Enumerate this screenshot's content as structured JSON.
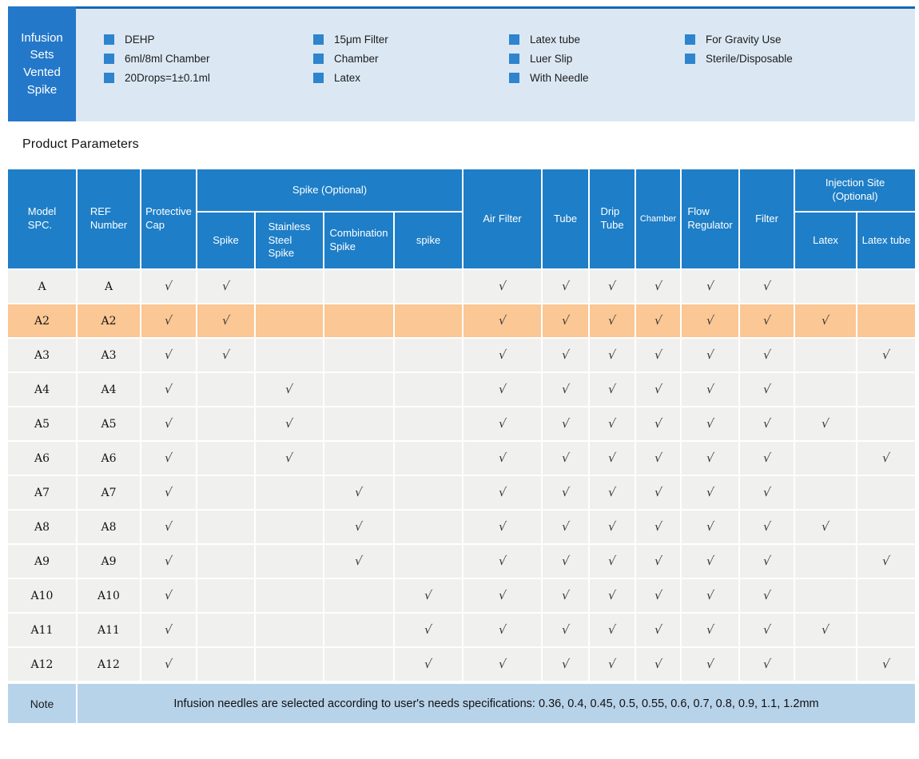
{
  "banner": {
    "title_lines": [
      "Infusion",
      "Sets",
      "Vented",
      "Spike"
    ],
    "features": [
      [
        "DEHP",
        "6ml/8ml Chamber",
        "20Drops=1±0.1ml"
      ],
      [
        "15μm Filter",
        "Chamber",
        "Latex"
      ],
      [
        "Latex tube",
        "Luer Slip",
        "With Needle"
      ],
      [
        "For Gravity Use",
        "Sterile/Disposable"
      ]
    ]
  },
  "section_title": "Product Parameters",
  "table": {
    "groups": {
      "spike": "Spike (Optional)",
      "injection": "Injection Site\n(Optional)"
    },
    "columns": {
      "model": "Model\nSPC.",
      "ref": "REF\nNumber",
      "cap": "Protective\nCap",
      "spike": "Spike",
      "stainless": "Stainless\nSteel\nSpike",
      "combination": "Combination\nSpike",
      "spike_lc": "spike",
      "air_filter": "Air Filter",
      "tube": "Tube",
      "drip_tube": "Drip\nTube",
      "chamber": "Chamber",
      "flow_regulator": "Flow\nRegulator",
      "filter": "Filter",
      "latex": "Latex",
      "latex_tube": "Latex tube"
    },
    "check_mark": "√",
    "rows": [
      {
        "model": "A",
        "ref": "A",
        "highlight": false,
        "checks": [
          1,
          1,
          0,
          0,
          0,
          1,
          1,
          1,
          1,
          1,
          1,
          0,
          0
        ]
      },
      {
        "model": "A2",
        "ref": "A2",
        "highlight": true,
        "checks": [
          1,
          1,
          0,
          0,
          0,
          1,
          1,
          1,
          1,
          1,
          1,
          1,
          0
        ]
      },
      {
        "model": "A3",
        "ref": "A3",
        "highlight": false,
        "checks": [
          1,
          1,
          0,
          0,
          0,
          1,
          1,
          1,
          1,
          1,
          1,
          0,
          1
        ]
      },
      {
        "model": "A4",
        "ref": "A4",
        "highlight": false,
        "checks": [
          1,
          0,
          1,
          0,
          0,
          1,
          1,
          1,
          1,
          1,
          1,
          0,
          0
        ]
      },
      {
        "model": "A5",
        "ref": "A5",
        "highlight": false,
        "checks": [
          1,
          0,
          1,
          0,
          0,
          1,
          1,
          1,
          1,
          1,
          1,
          1,
          0
        ]
      },
      {
        "model": "A6",
        "ref": "A6",
        "highlight": false,
        "checks": [
          1,
          0,
          1,
          0,
          0,
          1,
          1,
          1,
          1,
          1,
          1,
          0,
          1
        ]
      },
      {
        "model": "A7",
        "ref": "A7",
        "highlight": false,
        "checks": [
          1,
          0,
          0,
          1,
          0,
          1,
          1,
          1,
          1,
          1,
          1,
          0,
          0
        ]
      },
      {
        "model": "A8",
        "ref": "A8",
        "highlight": false,
        "checks": [
          1,
          0,
          0,
          1,
          0,
          1,
          1,
          1,
          1,
          1,
          1,
          1,
          0
        ]
      },
      {
        "model": "A9",
        "ref": "A9",
        "highlight": false,
        "checks": [
          1,
          0,
          0,
          1,
          0,
          1,
          1,
          1,
          1,
          1,
          1,
          0,
          1
        ]
      },
      {
        "model": "A10",
        "ref": "A10",
        "highlight": false,
        "checks": [
          1,
          0,
          0,
          0,
          1,
          1,
          1,
          1,
          1,
          1,
          1,
          0,
          0
        ]
      },
      {
        "model": "A11",
        "ref": "A11",
        "highlight": false,
        "checks": [
          1,
          0,
          0,
          0,
          1,
          1,
          1,
          1,
          1,
          1,
          1,
          1,
          0
        ]
      },
      {
        "model": "A12",
        "ref": "A12",
        "highlight": false,
        "checks": [
          1,
          0,
          0,
          0,
          1,
          1,
          1,
          1,
          1,
          1,
          1,
          0,
          1
        ]
      }
    ],
    "note_label": "Note",
    "note_text": "Infusion needles are selected according to user's needs specifications:  0.36, 0.4, 0.45, 0.5, 0.55, 0.6, 0.7, 0.8, 0.9, 1.1, 1.2mm"
  },
  "colors": {
    "banner_box": "#2478c9",
    "banner_panel": "#dbe8f4",
    "panel_top_border": "#1568b4",
    "header_blue": "#1e7ec7",
    "row_gray": "#f0f0ef",
    "highlight_orange": "#fbc794",
    "note_blue": "#b7d3ea",
    "feature_square": "#2e84cd"
  }
}
